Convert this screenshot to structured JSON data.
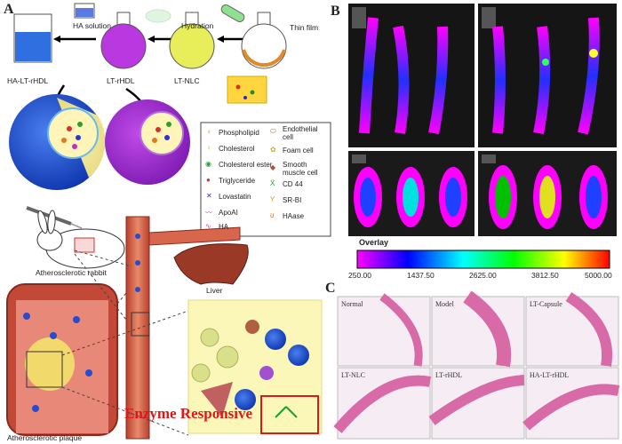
{
  "panels": {
    "a": "A",
    "b": "B",
    "c": "C"
  },
  "synthesis": {
    "ha_solution": "HA solution",
    "hydration": "Hydration",
    "thin_film": "Thin film",
    "ha_lt_rhdl": "HA-LT-rHDL",
    "lt_rhdl": "LT-rHDL",
    "lt_nlc": "LT-NLC"
  },
  "legend": {
    "items": [
      {
        "label": "Phospholipid",
        "icon": "phospholipid-icon"
      },
      {
        "label": "Cholesterol",
        "icon": "cholesterol-icon"
      },
      {
        "label": "Cholesterol ester",
        "icon": "cholesterol-ester-icon"
      },
      {
        "label": "Triglyceride",
        "icon": "triglyceride-icon"
      },
      {
        "label": "Lovastatin",
        "icon": "lovastatin-icon"
      },
      {
        "label": "ApoAI",
        "icon": "apoai-icon"
      },
      {
        "label": "HA",
        "icon": "ha-icon"
      },
      {
        "label": "Endothelial cell",
        "icon": "endothelial-cell-icon"
      },
      {
        "label": "Foam cell",
        "icon": "foam-cell-icon"
      },
      {
        "label": "Smooth muscle cell",
        "icon": "smooth-muscle-cell-icon"
      },
      {
        "label": "CD 44",
        "icon": "cd44-icon"
      },
      {
        "label": "SR-BI",
        "icon": "sr-bi-icon"
      },
      {
        "label": "HAase",
        "icon": "haase-icon"
      }
    ]
  },
  "body": {
    "rabbit": "Atherosclerotic rabbit",
    "liver": "Liver",
    "plaque": "Atherosclerotic plaque",
    "enzyme": "Enzyme Responsive"
  },
  "colorbar": {
    "title": "Overlay",
    "ticks": [
      "250.00",
      "1437.50",
      "2625.00",
      "3812.50",
      "5000.00"
    ],
    "colors": [
      "#ff00ff",
      "#0000ff",
      "#00ffff",
      "#00ff00",
      "#ffff00",
      "#ff0000"
    ]
  },
  "histology": [
    "Normal",
    "Model",
    "LT-Capsule",
    "LT-NLC",
    "LT-rHDL",
    "HA-LT-rHDL"
  ]
}
